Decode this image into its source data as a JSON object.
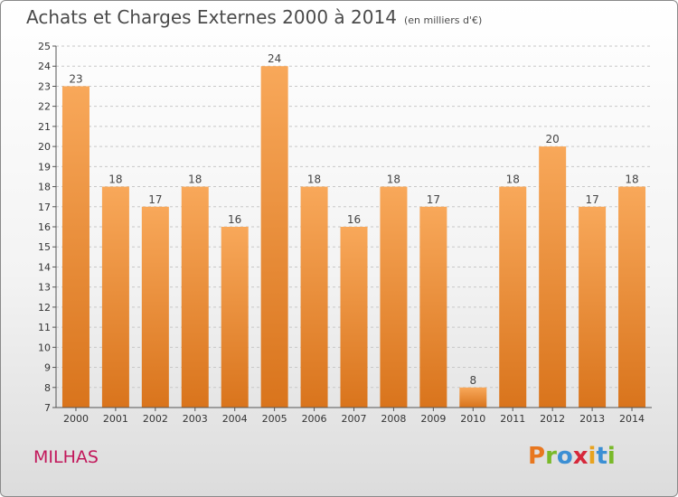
{
  "title": "Achats et Charges Externes 2000 à 2014",
  "unit": "(en milliers d'€)",
  "place": "MILHAS",
  "logo_text": "Proxiti",
  "colors": {
    "bar_top": "#f8a85a",
    "bar_bottom": "#d9741c",
    "grid": "#c8c8c8",
    "place": "#c2185b"
  },
  "chart_data": {
    "type": "bar",
    "categories": [
      "2000",
      "2001",
      "2002",
      "2003",
      "2004",
      "2005",
      "2006",
      "2007",
      "2008",
      "2009",
      "2010",
      "2011",
      "2012",
      "2013",
      "2014"
    ],
    "values": [
      23,
      18,
      17,
      18,
      16,
      24,
      18,
      16,
      18,
      17,
      8,
      18,
      20,
      17,
      18
    ],
    "ylim": [
      7,
      25
    ],
    "yticks": [
      7,
      8,
      9,
      10,
      11,
      12,
      13,
      14,
      15,
      16,
      17,
      18,
      19,
      20,
      21,
      22,
      23,
      24,
      25
    ],
    "grid": "horizontal dashed",
    "data_labels": true
  }
}
